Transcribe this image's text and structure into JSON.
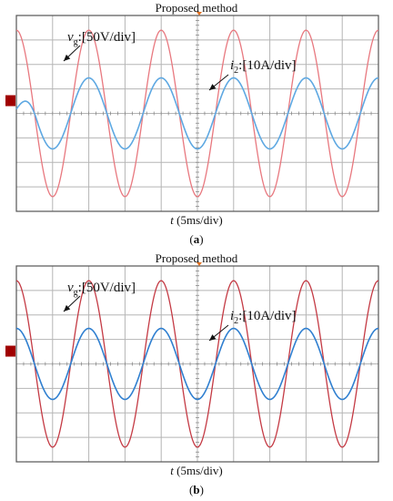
{
  "chart_data": [
    {
      "type": "line",
      "title": "Proposed method",
      "xlabel_symbol": "t",
      "xlabel_unit": " (5ms/div)",
      "caption": "a",
      "grid": true,
      "x_divisions": 10,
      "y_divisions": 8,
      "series": [
        {
          "symbol": "v",
          "subscript": "g",
          "scale": ":[50V/div]",
          "color": "#e8787f",
          "amplitude_div": 3.4,
          "cycles": 5,
          "phase_deg": 90
        },
        {
          "symbol": "i",
          "subscript": "2",
          "scale": ":[10A/div]",
          "color": "#5ea8e2",
          "amplitude_div": 1.45,
          "cycles": 5,
          "phase_deg": 90,
          "startup": true
        }
      ],
      "marker_color": "#a00000",
      "trigger_color": "#e07020"
    },
    {
      "type": "line",
      "title": "Proposed method",
      "xlabel_symbol": "t",
      "xlabel_unit": " (5ms/div)",
      "caption": "b",
      "grid": true,
      "x_divisions": 10,
      "y_divisions": 8,
      "series": [
        {
          "symbol": "v",
          "subscript": "g",
          "scale": ":[50V/div]",
          "color": "#c43a44",
          "amplitude_div": 3.4,
          "cycles": 5,
          "phase_deg": 90
        },
        {
          "symbol": "i",
          "subscript": "2",
          "scale": ":[10A/div]",
          "color": "#2f7fd0",
          "amplitude_div": 1.45,
          "cycles": 5,
          "phase_deg": 90,
          "startup": false
        }
      ],
      "marker_color": "#a00000",
      "trigger_color": "#e07020"
    }
  ]
}
